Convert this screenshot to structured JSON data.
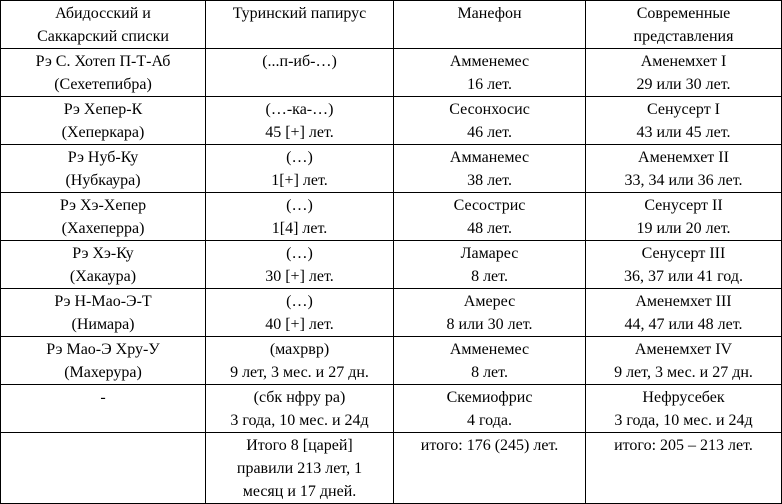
{
  "headers": [
    [
      "Абидосский и",
      "Саккарский списки"
    ],
    [
      "Туринский папирус"
    ],
    [
      "Манефон"
    ],
    [
      "Современные",
      "представления"
    ]
  ],
  "rows": [
    [
      [
        "Рэ С. Хотеп П-Т-Аб",
        "(Сехетепибра)"
      ],
      [
        "(...п-иб-…)"
      ],
      [
        "Амменемес",
        "16 лет."
      ],
      [
        "Аменемхет I",
        "29 или 30 лет."
      ]
    ],
    [
      [
        "Рэ Хепер-К",
        "(Хеперкара)"
      ],
      [
        "(…-ка-…)",
        "45 [+] лет."
      ],
      [
        "Сесонхосис",
        "46 лет."
      ],
      [
        "Сенусерт I",
        "43 или 45 лет."
      ]
    ],
    [
      [
        "Рэ Нуб-Ку",
        "(Нубкаура)"
      ],
      [
        "(…)",
        "1[+] лет."
      ],
      [
        "Амманемес",
        "38 лет."
      ],
      [
        "Аменемхет II",
        "33, 34 или 36 лет."
      ]
    ],
    [
      [
        "Рэ Хэ-Хепер",
        "(Хахеперра)"
      ],
      [
        "(…)",
        "1[4] лет."
      ],
      [
        "Сесострис",
        "48 лет."
      ],
      [
        "Сенусерт II",
        "19 или 20 лет."
      ]
    ],
    [
      [
        "Рэ Хэ-Ку",
        "(Хакаура)"
      ],
      [
        "(…)",
        "30 [+] лет."
      ],
      [
        "Ламарес",
        "8 лет."
      ],
      [
        "Сенусерт III",
        "36, 37 или 41 год."
      ]
    ],
    [
      [
        "Рэ Н-Мао-Э-Т",
        "(Нимара)"
      ],
      [
        "(…)",
        "40 [+] лет."
      ],
      [
        "Амерес",
        "8 или 30 лет."
      ],
      [
        "Аменемхет III",
        "44, 47 или 48 лет."
      ]
    ],
    [
      [
        "Рэ Мао-Э Хру-У",
        "(Махерура)"
      ],
      [
        "(махрвр)",
        "9 лет, 3 мес. и 27 дн."
      ],
      [
        "Амменемес",
        "8 лет."
      ],
      [
        "Аменемхет IV",
        "9 лет, 3 мес. и 27 дн."
      ]
    ],
    [
      [
        "-"
      ],
      [
        "(сбк нфру ра)",
        "3 года, 10 мес. и 24д"
      ],
      [
        "Скемиофрис",
        "4 года."
      ],
      [
        "Нефрусебек",
        "3 года, 10 мес. и 24д"
      ]
    ],
    [
      [],
      [
        "Итого 8 [царей]",
        "правили 213 лет, 1",
        "месяц и 17 дней."
      ],
      [
        "итого: 176 (245) лет."
      ],
      [
        "итого: 205 – 213 лет."
      ]
    ]
  ]
}
